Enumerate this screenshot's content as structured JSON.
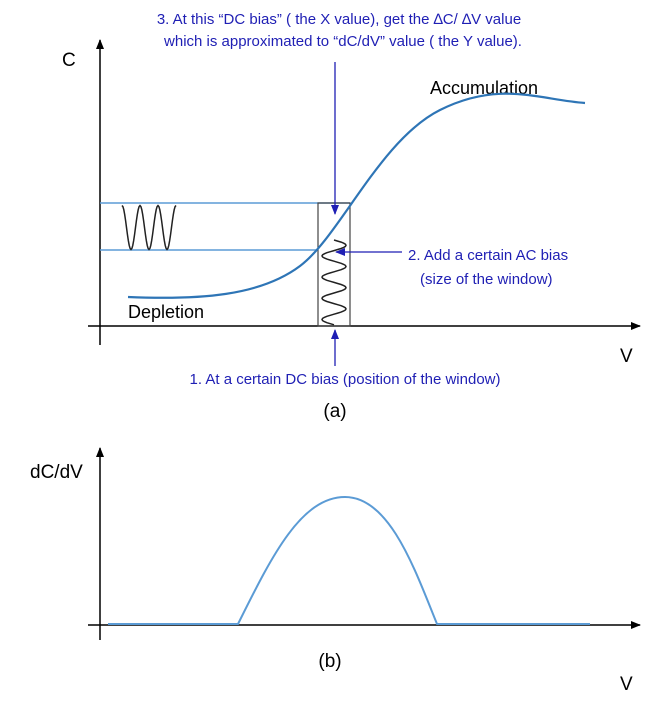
{
  "panel_a": {
    "note_3": [
      "3. At this “DC bias” ( the X value), get the ∆C/ ∆V value",
      "which is approximated to “dC/dV” value ( the Y value)."
    ],
    "y_axis_label": "C",
    "x_axis_label": "V",
    "accumulation": "Accumulation",
    "depletion": "Depletion",
    "note_2": [
      "2. Add a certain AC bias",
      "(size of the window)"
    ],
    "note_1": "1. At a certain DC bias (position of the window)",
    "caption": "(a)"
  },
  "panel_b": {
    "y_axis_label": "dC/dV",
    "x_axis_label": "V",
    "caption": "(b)"
  }
}
